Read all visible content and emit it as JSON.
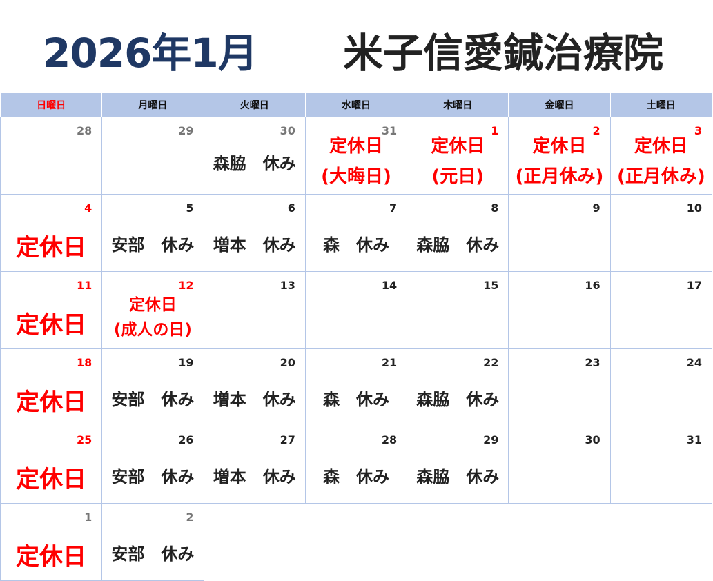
{
  "header": {
    "month_title": "2026年1月",
    "clinic_name": "米子信愛鍼治療院"
  },
  "colors": {
    "header_bg": "#b4c6e7",
    "red": "#ff0000",
    "title": "#1f3864"
  },
  "weekdays": [
    "日曜日",
    "月曜日",
    "火曜日",
    "水曜日",
    "木曜日",
    "金曜日",
    "土曜日"
  ],
  "weeks": [
    [
      {
        "day": "28",
        "tone": "gray",
        "style": "staff",
        "lines": []
      },
      {
        "day": "29",
        "tone": "gray",
        "style": "staff",
        "lines": []
      },
      {
        "day": "30",
        "tone": "gray",
        "style": "staff-top",
        "lines": [
          "森脇　休み"
        ]
      },
      {
        "day": "31",
        "tone": "gray",
        "style": "closed",
        "lines": [
          "定休日",
          "(大晦日)"
        ]
      },
      {
        "day": "1",
        "tone": "red",
        "style": "closed",
        "lines": [
          "定休日",
          "(元日)"
        ]
      },
      {
        "day": "2",
        "tone": "red",
        "style": "closed",
        "lines": [
          "定休日",
          "(正月休み)"
        ]
      },
      {
        "day": "3",
        "tone": "red",
        "style": "closed",
        "lines": [
          "定休日",
          "(正月休み)"
        ]
      }
    ],
    [
      {
        "day": "4",
        "tone": "red",
        "style": "closed-big",
        "lines": [
          "定休日"
        ]
      },
      {
        "day": "5",
        "tone": "dark",
        "style": "staff",
        "lines": [
          "安部　休み"
        ]
      },
      {
        "day": "6",
        "tone": "dark",
        "style": "staff",
        "lines": [
          "増本　休み"
        ]
      },
      {
        "day": "7",
        "tone": "dark",
        "style": "staff",
        "lines": [
          "森　休み"
        ]
      },
      {
        "day": "8",
        "tone": "dark",
        "style": "staff",
        "lines": [
          "森脇　休み"
        ]
      },
      {
        "day": "9",
        "tone": "dark",
        "style": "staff",
        "lines": []
      },
      {
        "day": "10",
        "tone": "dark",
        "style": "staff",
        "lines": []
      }
    ],
    [
      {
        "day": "11",
        "tone": "red",
        "style": "closed-big",
        "lines": [
          "定休日"
        ]
      },
      {
        "day": "12",
        "tone": "red",
        "style": "closed-small",
        "lines": [
          "定休日",
          "(成人の日)"
        ]
      },
      {
        "day": "13",
        "tone": "dark",
        "style": "staff",
        "lines": []
      },
      {
        "day": "14",
        "tone": "dark",
        "style": "staff",
        "lines": []
      },
      {
        "day": "15",
        "tone": "dark",
        "style": "staff",
        "lines": []
      },
      {
        "day": "16",
        "tone": "dark",
        "style": "staff",
        "lines": []
      },
      {
        "day": "17",
        "tone": "dark",
        "style": "staff",
        "lines": []
      }
    ],
    [
      {
        "day": "18",
        "tone": "red",
        "style": "closed-big",
        "lines": [
          "定休日"
        ]
      },
      {
        "day": "19",
        "tone": "dark",
        "style": "staff",
        "lines": [
          "安部　休み"
        ]
      },
      {
        "day": "20",
        "tone": "dark",
        "style": "staff",
        "lines": [
          "増本　休み"
        ]
      },
      {
        "day": "21",
        "tone": "dark",
        "style": "staff",
        "lines": [
          "森　休み"
        ]
      },
      {
        "day": "22",
        "tone": "dark",
        "style": "staff",
        "lines": [
          "森脇　休み"
        ]
      },
      {
        "day": "23",
        "tone": "dark",
        "style": "staff",
        "lines": []
      },
      {
        "day": "24",
        "tone": "dark",
        "style": "staff",
        "lines": []
      }
    ],
    [
      {
        "day": "25",
        "tone": "red",
        "style": "closed-big",
        "lines": [
          "定休日"
        ]
      },
      {
        "day": "26",
        "tone": "dark",
        "style": "staff",
        "lines": [
          "安部　休み"
        ]
      },
      {
        "day": "27",
        "tone": "dark",
        "style": "staff",
        "lines": [
          "増本　休み"
        ]
      },
      {
        "day": "28",
        "tone": "dark",
        "style": "staff",
        "lines": [
          "森　休み"
        ]
      },
      {
        "day": "29",
        "tone": "dark",
        "style": "staff",
        "lines": [
          "森脇　休み"
        ]
      },
      {
        "day": "30",
        "tone": "dark",
        "style": "staff",
        "lines": []
      },
      {
        "day": "31",
        "tone": "dark",
        "style": "staff",
        "lines": []
      }
    ],
    [
      {
        "day": "1",
        "tone": "gray",
        "style": "closed-big",
        "lines": [
          "定休日"
        ]
      },
      {
        "day": "2",
        "tone": "gray",
        "style": "staff",
        "lines": [
          "安部　休み"
        ]
      }
    ]
  ]
}
